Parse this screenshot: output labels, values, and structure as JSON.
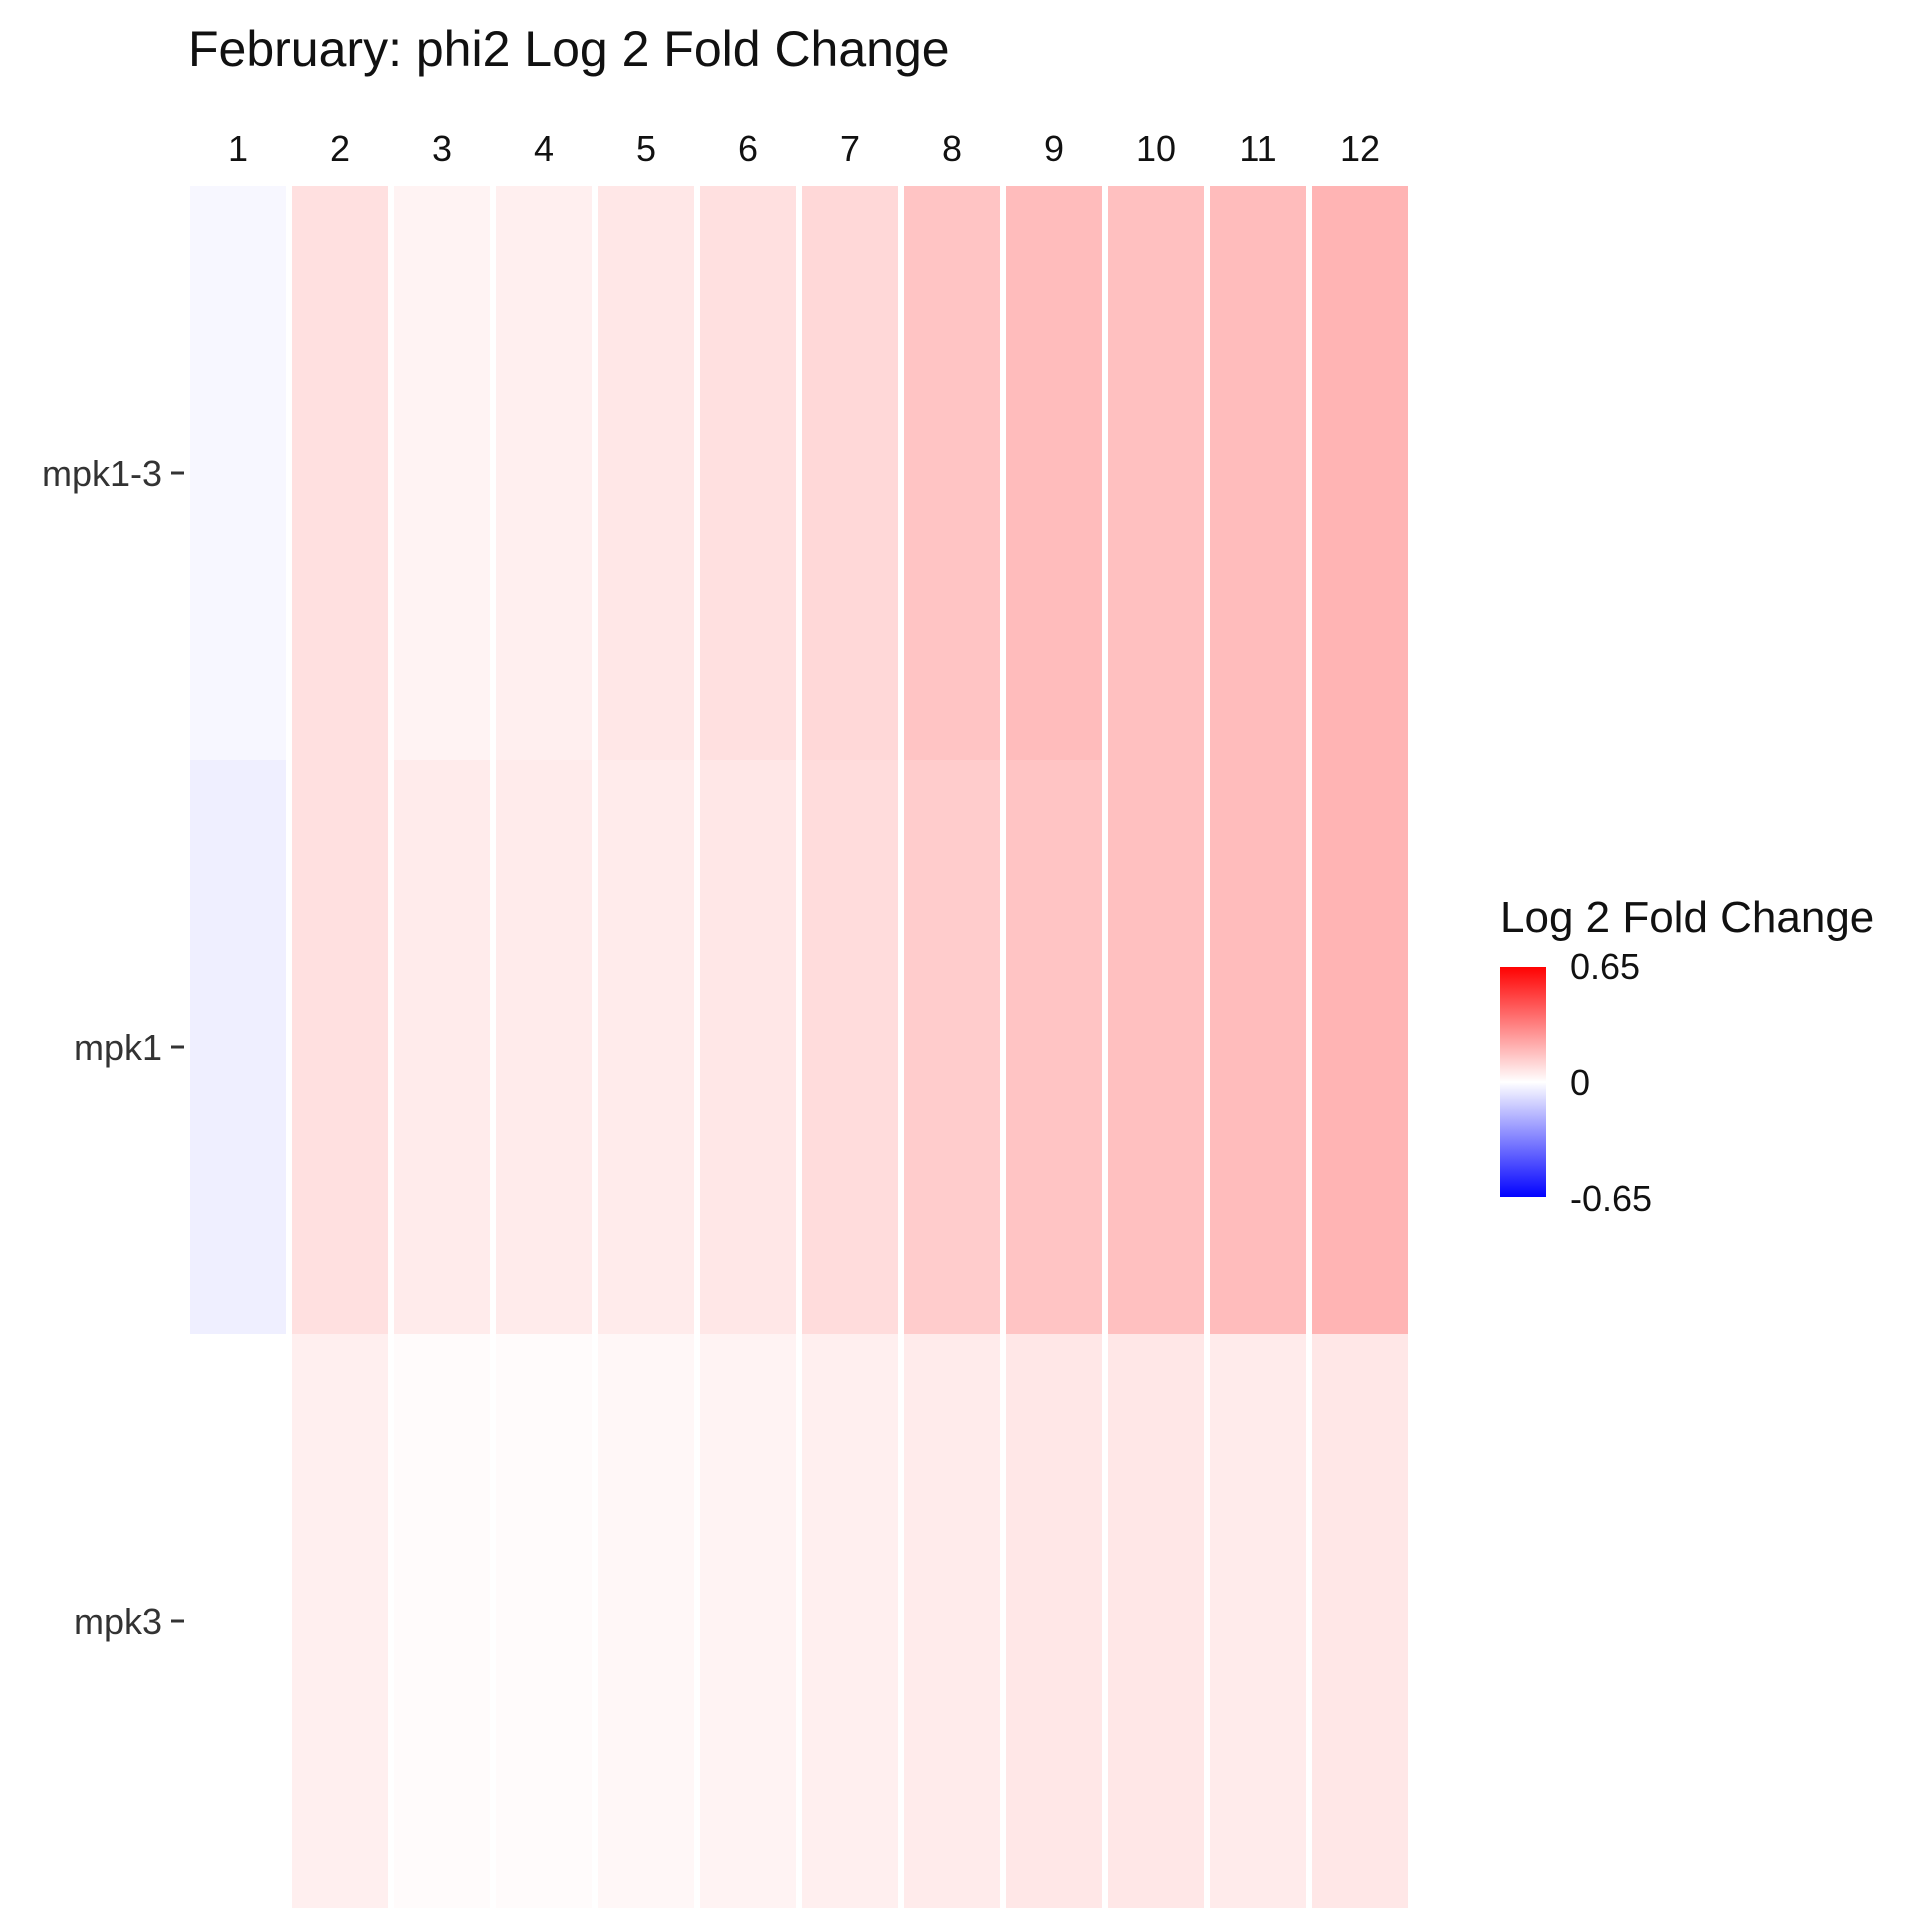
{
  "chart_data": {
    "type": "heatmap",
    "title": "February: phi2 Log 2 Fold Change",
    "xlabel": "",
    "ylabel": "",
    "columns": [
      "1",
      "2",
      "3",
      "4",
      "5",
      "6",
      "7",
      "8",
      "9",
      "10",
      "11",
      "12"
    ],
    "rows": [
      "mpk1-3",
      "mpk1",
      "mpk3"
    ],
    "values": [
      [
        -0.02,
        0.08,
        0.03,
        0.04,
        0.06,
        0.08,
        0.1,
        0.15,
        0.17,
        0.16,
        0.17,
        0.19
      ],
      [
        -0.04,
        0.08,
        0.05,
        0.05,
        0.05,
        0.06,
        0.09,
        0.13,
        0.15,
        0.16,
        0.17,
        0.19
      ],
      [
        0.0,
        0.04,
        0.01,
        0.01,
        0.02,
        0.03,
        0.04,
        0.05,
        0.06,
        0.06,
        0.05,
        0.06
      ]
    ],
    "legend": {
      "title": "Log 2 Fold Change",
      "min": -0.65,
      "max": 0.65,
      "ticks": [
        "0.65",
        "0",
        "-0.65"
      ],
      "low_color": "#0000ff",
      "mid_color": "#ffffff",
      "high_color": "#ff0000",
      "position": "right"
    },
    "grid": false
  }
}
